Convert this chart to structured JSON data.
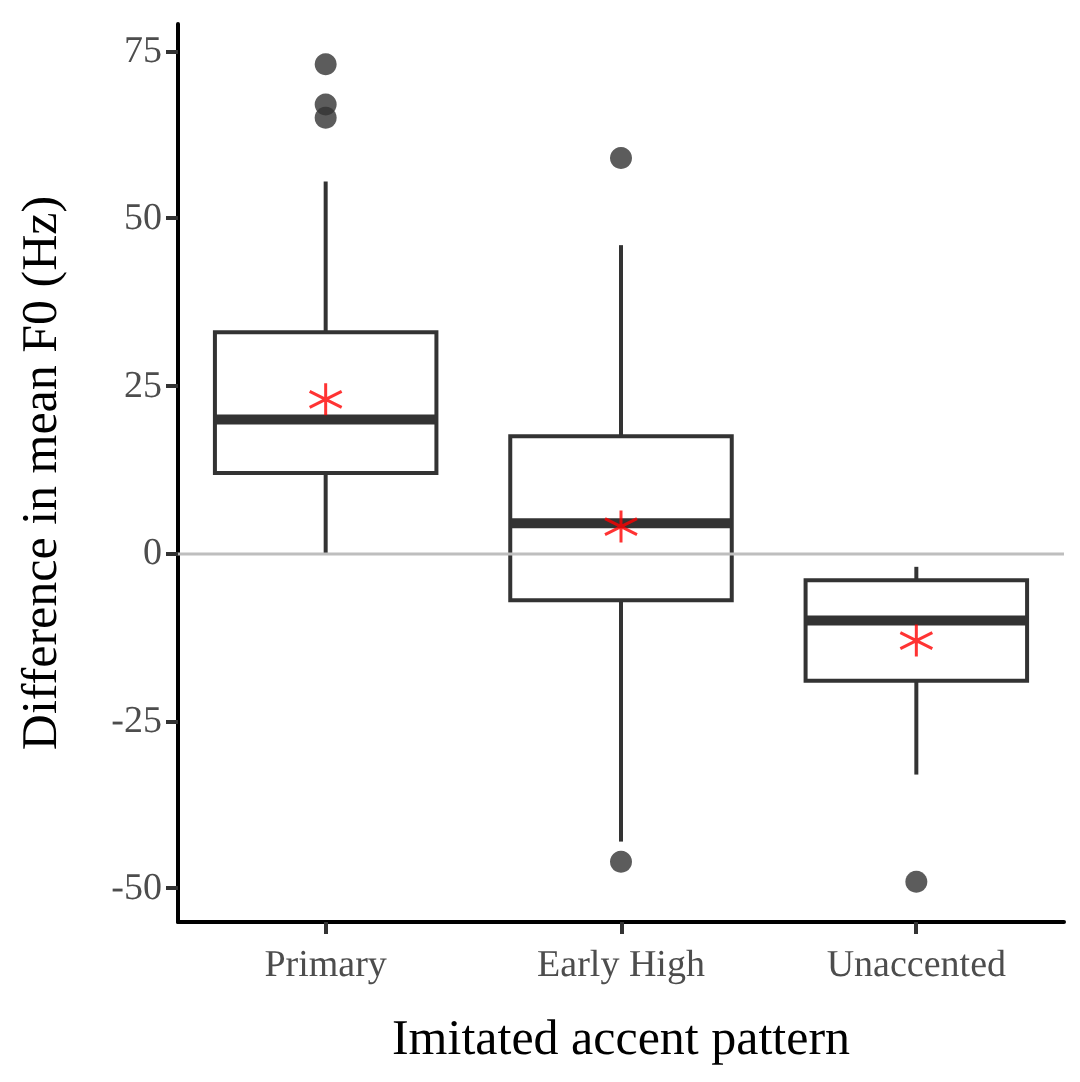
{
  "chart_data": {
    "type": "box",
    "xlabel": "Imitated accent pattern",
    "ylabel": "Difference in mean F0 (Hz)",
    "categories": [
      "Primary",
      "Early High",
      "Unaccented"
    ],
    "boxes": [
      {
        "low": 0,
        "q1": 12,
        "median": 20,
        "q3": 33,
        "high": 55.5,
        "mean": 23,
        "outliers": [
          73,
          67,
          65
        ]
      },
      {
        "low": -43,
        "q1": -7,
        "median": 4.5,
        "q3": 17.5,
        "high": 46,
        "mean": 4,
        "outliers": [
          59,
          -46
        ]
      },
      {
        "low": -33,
        "q1": -19,
        "median": -10,
        "q3": -4,
        "high": -2,
        "mean": -13,
        "outliers": [
          -49
        ]
      }
    ],
    "color": "#333333",
    "ylim": [
      -55,
      79
    ],
    "yticks": [
      -50,
      -25,
      0,
      25,
      50,
      75
    ],
    "ref_lines": [
      {
        "axis": "y",
        "value": 0,
        "color": "#bebebe"
      }
    ],
    "grid": false
  }
}
